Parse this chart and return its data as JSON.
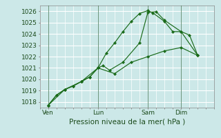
{
  "background_color": "#cce8e8",
  "grid_color": "#ffffff",
  "line_color": "#1a6b1a",
  "xlabel": "Pression niveau de la mer( hPa )",
  "ylim": [
    1017.5,
    1026.5
  ],
  "yticks": [
    1018,
    1019,
    1020,
    1021,
    1022,
    1023,
    1024,
    1025,
    1026
  ],
  "xtick_labels": [
    "Ven",
    "Lun",
    "Sam",
    "Dim"
  ],
  "xtick_positions": [
    0.5,
    3.5,
    6.5,
    8.5
  ],
  "vline_positions": [
    0.5,
    3.5,
    6.5,
    8.5
  ],
  "xlim": [
    0,
    10.5
  ],
  "lines": [
    {
      "x": [
        0.5,
        1.0,
        1.5,
        2.0,
        2.5,
        3.0,
        3.5,
        4.0,
        4.5,
        5.0,
        5.5,
        6.0,
        6.5,
        6.8,
        7.5,
        8.0,
        8.5,
        9.0,
        9.5
      ],
      "y": [
        1017.7,
        1018.6,
        1019.1,
        1019.4,
        1019.8,
        1020.2,
        1021.0,
        1022.3,
        1023.2,
        1024.2,
        1025.1,
        1025.8,
        1026.05,
        1025.85,
        1025.1,
        1024.2,
        1024.2,
        1023.9,
        1022.1
      ]
    },
    {
      "x": [
        0.5,
        1.0,
        1.5,
        2.0,
        2.5,
        3.0,
        3.5,
        3.8,
        4.2,
        5.0,
        6.0,
        6.5,
        7.0,
        7.5,
        8.5,
        9.5
      ],
      "y": [
        1017.7,
        1018.6,
        1019.1,
        1019.4,
        1019.8,
        1020.2,
        1021.0,
        1021.2,
        1020.8,
        1021.5,
        1023.2,
        1025.9,
        1025.95,
        1025.2,
        1024.2,
        1022.1
      ]
    },
    {
      "x": [
        0.5,
        1.5,
        2.5,
        3.5,
        4.5,
        5.5,
        6.5,
        7.5,
        8.5,
        9.5
      ],
      "y": [
        1017.7,
        1019.1,
        1019.8,
        1021.0,
        1020.5,
        1021.5,
        1022.0,
        1022.5,
        1022.8,
        1022.1
      ]
    }
  ]
}
